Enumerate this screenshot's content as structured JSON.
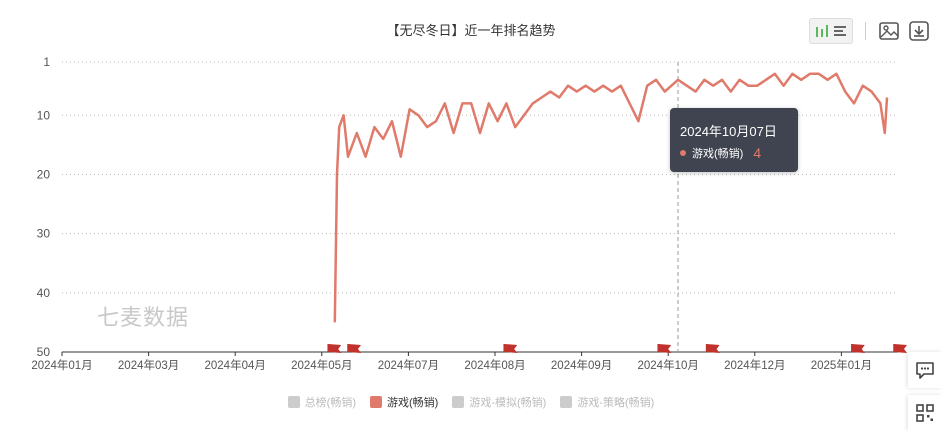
{
  "chart_data": {
    "type": "line",
    "title": "【无尽冬日】近一年排名趋势",
    "x_tick_labels": [
      "2024年01月",
      "2024年03月",
      "2024年04月",
      "2024年05月",
      "2024年07月",
      "2024年08月",
      "2024年09月",
      "2024年10月",
      "2024年12月",
      "2025年01月"
    ],
    "y_tick_labels": [
      "1",
      "10",
      "20",
      "30",
      "40",
      "50"
    ],
    "ylim": [
      1,
      50
    ],
    "y_inverted": true,
    "grid": true,
    "legend_position": "bottom",
    "series": [
      {
        "name": "游戏(畅销)",
        "color": "#e07a6a",
        "x": [
          "2024-05-04",
          "2024-05-05",
          "2024-05-06",
          "2024-05-08",
          "2024-05-10",
          "2024-05-14",
          "2024-05-18",
          "2024-05-22",
          "2024-05-26",
          "2024-05-30",
          "2024-06-03",
          "2024-06-07",
          "2024-06-11",
          "2024-06-15",
          "2024-06-19",
          "2024-06-23",
          "2024-06-27",
          "2024-07-01",
          "2024-07-05",
          "2024-07-09",
          "2024-07-13",
          "2024-07-17",
          "2024-07-21",
          "2024-07-25",
          "2024-07-29",
          "2024-08-02",
          "2024-08-06",
          "2024-08-10",
          "2024-08-14",
          "2024-08-18",
          "2024-08-22",
          "2024-08-26",
          "2024-08-30",
          "2024-09-03",
          "2024-09-07",
          "2024-09-11",
          "2024-09-15",
          "2024-09-19",
          "2024-09-23",
          "2024-09-27",
          "2024-10-01",
          "2024-10-07",
          "2024-10-11",
          "2024-10-15",
          "2024-10-19",
          "2024-10-23",
          "2024-10-27",
          "2024-10-31",
          "2024-11-04",
          "2024-11-08",
          "2024-11-12",
          "2024-11-16",
          "2024-11-20",
          "2024-11-24",
          "2024-11-28",
          "2024-12-02",
          "2024-12-06",
          "2024-12-10",
          "2024-12-14",
          "2024-12-18",
          "2024-12-22",
          "2024-12-26",
          "2024-12-30",
          "2025-01-03",
          "2025-01-07",
          "2025-01-09",
          "2025-01-10"
        ],
        "values": [
          45,
          20,
          12,
          10,
          17,
          13,
          17,
          12,
          14,
          11,
          17,
          9,
          10,
          12,
          11,
          8,
          13,
          8,
          8,
          13,
          8,
          11,
          8,
          12,
          10,
          8,
          7,
          6,
          7,
          5,
          6,
          5,
          6,
          5,
          6,
          5,
          8,
          11,
          5,
          4,
          6,
          4,
          5,
          6,
          4,
          5,
          4,
          6,
          4,
          5,
          5,
          4,
          3,
          5,
          3,
          4,
          3,
          3,
          4,
          3,
          6,
          8,
          5,
          6,
          8,
          13,
          7
        ]
      }
    ],
    "markers_dates": [
      "2024-05-01",
      "2024-05-10",
      "2024-07-20",
      "2024-09-28",
      "2024-10-20",
      "2024-12-25",
      "2025-01-14"
    ],
    "highlight": {
      "date": "2024年10月07日",
      "series": "游戏(畅销)",
      "value": "4"
    }
  },
  "watermark": "七麦数据",
  "legend": [
    {
      "label": "总榜(畅销)",
      "color": "#cccccc",
      "active": false
    },
    {
      "label": "游戏(畅销)",
      "color": "#e07a6a",
      "active": true
    },
    {
      "label": "游戏-模拟(畅销)",
      "color": "#cccccc",
      "active": false
    },
    {
      "label": "游戏-策略(畅销)",
      "color": "#cccccc",
      "active": false
    }
  ],
  "icons": {
    "toggle": [
      "bar-chart-icon",
      "list-icon"
    ],
    "save_image": "image-icon",
    "download": "download-icon",
    "side": [
      "chat-icon",
      "qr-code-icon"
    ]
  }
}
